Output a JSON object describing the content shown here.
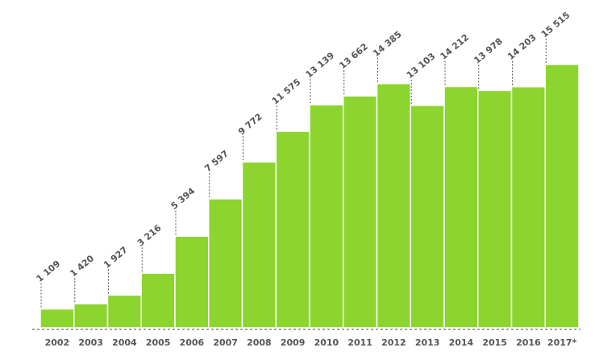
{
  "colors": {
    "bar": "#8cd42e",
    "text": "#555555",
    "background": "#ffffff"
  },
  "chart_data": {
    "type": "bar",
    "title": "",
    "xlabel": "",
    "ylabel": "",
    "categories": [
      "2002",
      "2003",
      "2004",
      "2005",
      "2006",
      "2007",
      "2008",
      "2009",
      "2010",
      "2011",
      "2012",
      "2013",
      "2014",
      "2015",
      "2016",
      "2017*"
    ],
    "values": [
      1109,
      1420,
      1927,
      3216,
      5394,
      7597,
      9772,
      11575,
      13139,
      13662,
      14385,
      13103,
      14212,
      13978,
      14203,
      15515
    ],
    "value_labels": [
      "1 109",
      "1 420",
      "1 927",
      "3 216",
      "5 394",
      "7 597",
      "9 772",
      "11 575",
      "13 139",
      "13 662",
      "14 385",
      "13 103",
      "14 212",
      "13 978",
      "14 203",
      "15 515"
    ],
    "ylim": [
      0,
      15515
    ],
    "grid": false,
    "legend": "none"
  }
}
